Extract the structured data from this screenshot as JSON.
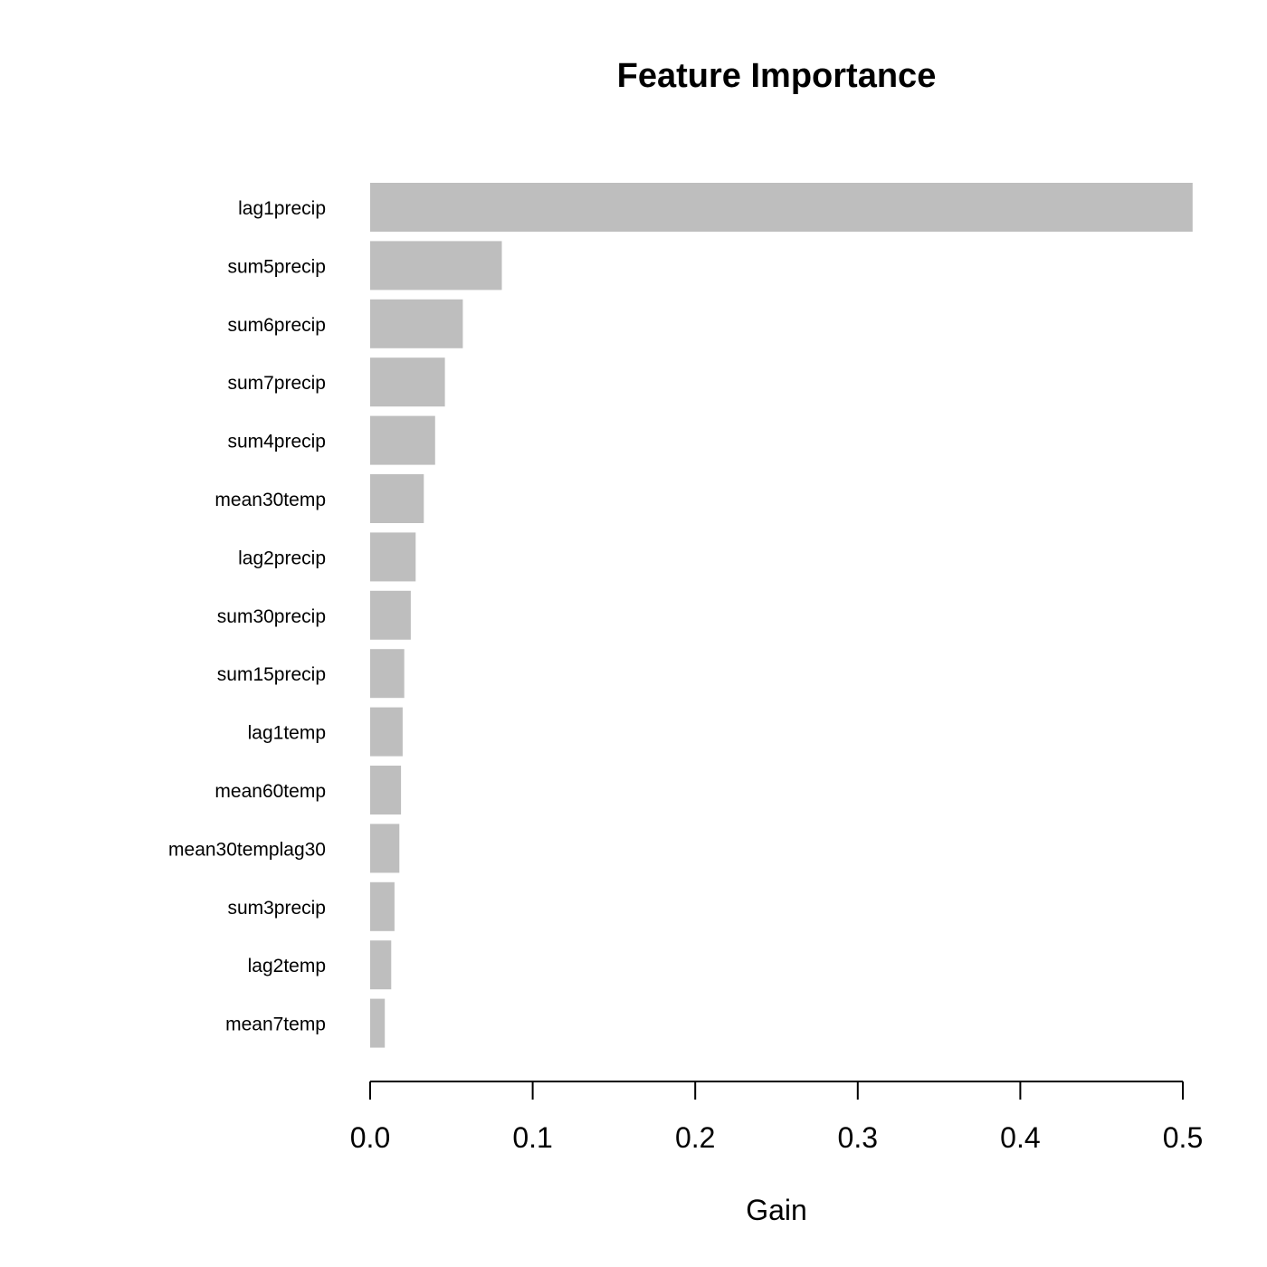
{
  "chart_data": {
    "type": "bar",
    "orientation": "horizontal",
    "title": "Feature Importance",
    "xlabel": "Gain",
    "ylabel": "",
    "xlim": [
      0,
      0.5
    ],
    "xticks": [
      "0.0",
      "0.1",
      "0.2",
      "0.3",
      "0.4",
      "0.5"
    ],
    "grid": false,
    "legend": "none",
    "bar_color": "#bebebe",
    "categories": [
      "lag1precip",
      "sum5precip",
      "sum6precip",
      "sum7precip",
      "sum4precip",
      "mean30temp",
      "lag2precip",
      "sum30precip",
      "sum15precip",
      "lag1temp",
      "mean60temp",
      "mean30templag30",
      "sum3precip",
      "lag2temp",
      "mean7temp"
    ],
    "values": [
      0.506,
      0.081,
      0.057,
      0.046,
      0.04,
      0.033,
      0.028,
      0.025,
      0.021,
      0.02,
      0.019,
      0.018,
      0.015,
      0.013,
      0.009
    ]
  }
}
